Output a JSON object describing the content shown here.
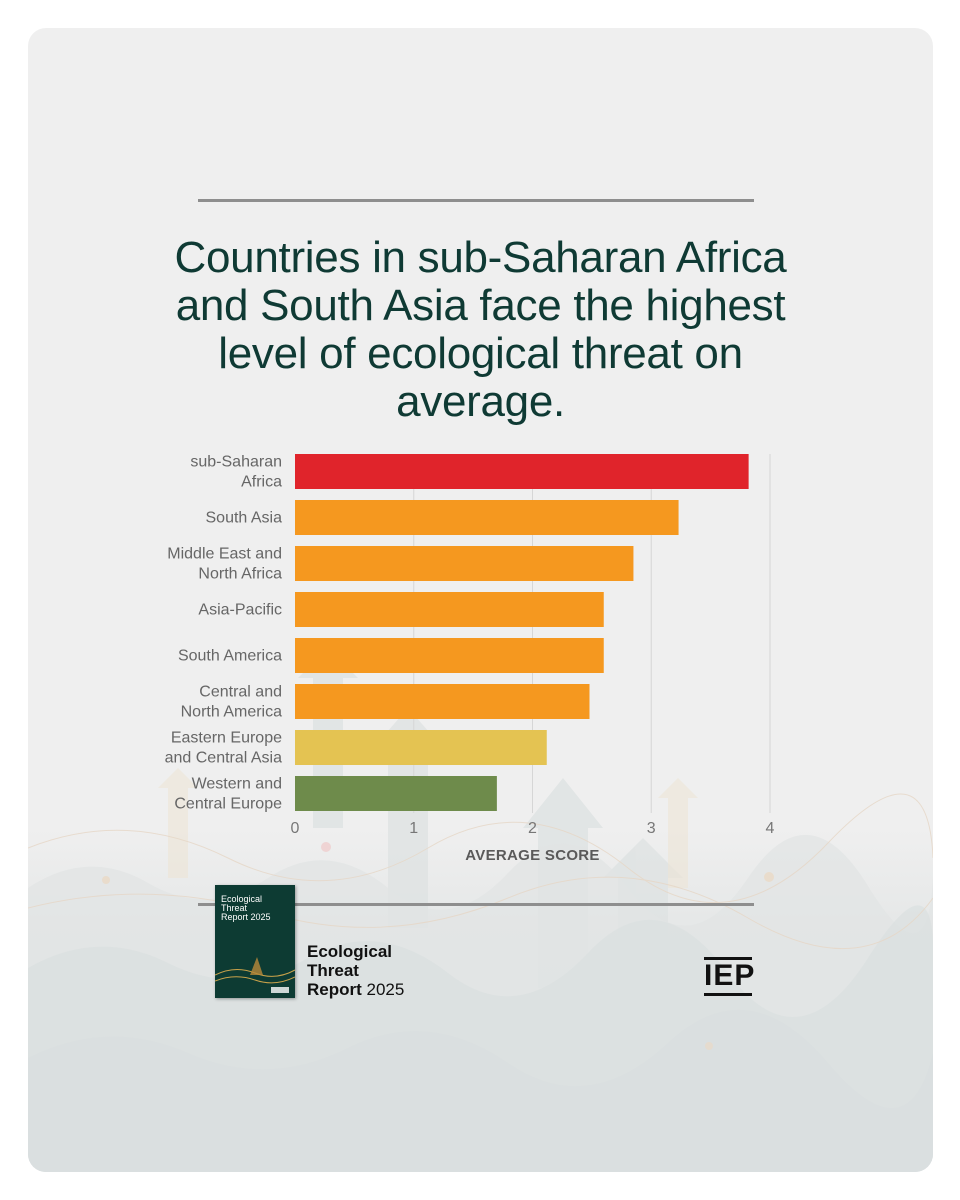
{
  "headline": "Countries in sub-Saharan Africa and South Asia face the highest level of ecological threat on average.",
  "colors": {
    "title": "#0f3a34",
    "highest": "#e0242b",
    "high": "#f5981f",
    "medium": "#e4c352",
    "low": "#6e8b4b"
  },
  "chart_data": {
    "type": "bar",
    "orientation": "horizontal",
    "title": "Countries in sub-Saharan Africa and South Asia face the highest level of ecological threat on average.",
    "categories": [
      "sub-Saharan\nAfrica",
      "South Asia",
      "Middle East and\nNorth Africa",
      "Asia-Pacific",
      "South America",
      "Central and\nNorth America",
      "Eastern Europe\nand Central Asia",
      "Western and\nCentral Europe"
    ],
    "values": [
      3.82,
      3.23,
      2.85,
      2.6,
      2.6,
      2.48,
      2.12,
      1.7
    ],
    "bar_colors": [
      "#e0242b",
      "#f5981f",
      "#f5981f",
      "#f5981f",
      "#f5981f",
      "#f5981f",
      "#e4c352",
      "#6e8b4b"
    ],
    "xlabel": "AVERAGE SCORE",
    "ylabel": "",
    "xlim": [
      0,
      4
    ],
    "xticks": [
      0,
      1,
      2,
      3,
      4
    ],
    "grid": true
  },
  "footer": {
    "cover_title": "Ecological\nThreat\nReport 2025",
    "report_name_bold_1": "Ecological",
    "report_name_bold_2": "Threat",
    "report_name_bold_3": "Report",
    "report_year": "2025",
    "logo": "IEP"
  },
  "icons": [
    "report-cover-thumbnail",
    "iep-logo"
  ]
}
